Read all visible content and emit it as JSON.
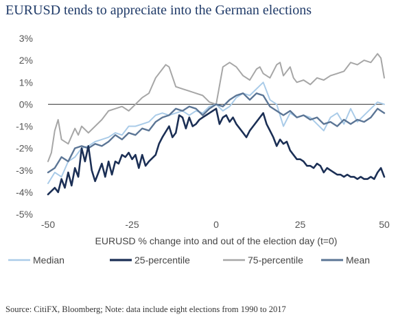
{
  "title": "EURUSD tends to appreciate into the German elections",
  "source": "Source: CitiFX, Bloomberg; Note: data include eight elections from 1990 to 2017",
  "chart_data": {
    "type": "line",
    "xlabel": "EURUSD % change into and out of the election day (t=0)",
    "ylabel": "",
    "xlim": [
      -50,
      50
    ],
    "ylim": [
      -5,
      3
    ],
    "xticks": [
      -50,
      -25,
      0,
      25,
      50
    ],
    "xtick_labels": [
      "-50",
      "-25",
      "0",
      "25",
      "50"
    ],
    "yticks": [
      3,
      2,
      1,
      0,
      -1,
      -2,
      -3,
      -4,
      -5
    ],
    "ytick_labels": [
      "3%",
      "2%",
      "1%",
      "0%",
      "-1%",
      "-2%",
      "-3%",
      "-4%",
      "-5%"
    ],
    "legend_position": "bottom",
    "grid": false,
    "zero_line": true,
    "series": [
      {
        "name": "Median",
        "color": "#a9cbe8",
        "width": 2,
        "points": [
          [
            -50,
            -3.6
          ],
          [
            -48,
            -3.1
          ],
          [
            -46,
            -3.3
          ],
          [
            -44,
            -2.6
          ],
          [
            -42,
            -2.4
          ],
          [
            -40,
            -2.0
          ],
          [
            -38,
            -1.9
          ],
          [
            -36,
            -1.7
          ],
          [
            -34,
            -1.6
          ],
          [
            -32,
            -1.5
          ],
          [
            -30,
            -1.3
          ],
          [
            -28,
            -1.4
          ],
          [
            -26,
            -1.0
          ],
          [
            -24,
            -1.0
          ],
          [
            -22,
            -0.9
          ],
          [
            -20,
            -0.8
          ],
          [
            -18,
            -0.5
          ],
          [
            -16,
            -0.4
          ],
          [
            -14,
            -0.5
          ],
          [
            -12,
            -0.4
          ],
          [
            -10,
            -0.3
          ],
          [
            -8,
            -0.5
          ],
          [
            -6,
            -0.3
          ],
          [
            -4,
            -0.4
          ],
          [
            -2,
            -0.1
          ],
          [
            0,
            0.0
          ],
          [
            2,
            -0.3
          ],
          [
            4,
            -0.1
          ],
          [
            6,
            0.3
          ],
          [
            8,
            0.5
          ],
          [
            10,
            0.4
          ],
          [
            12,
            0.7
          ],
          [
            14,
            1.0
          ],
          [
            16,
            0.2
          ],
          [
            18,
            0.0
          ],
          [
            20,
            -1.0
          ],
          [
            22,
            -0.4
          ],
          [
            24,
            -0.6
          ],
          [
            26,
            -0.5
          ],
          [
            28,
            -0.6
          ],
          [
            30,
            -0.9
          ],
          [
            32,
            -1.2
          ],
          [
            34,
            -0.6
          ],
          [
            36,
            -0.4
          ],
          [
            38,
            -0.9
          ],
          [
            40,
            -0.2
          ],
          [
            42,
            -0.8
          ],
          [
            44,
            -0.5
          ],
          [
            46,
            -0.2
          ],
          [
            48,
            0.1
          ],
          [
            50,
            0.0
          ]
        ]
      },
      {
        "name": "25-percentile",
        "color": "#1b2f55",
        "width": 2.6,
        "points": [
          [
            -50,
            -4.1
          ],
          [
            -48,
            -3.8
          ],
          [
            -47,
            -4.0
          ],
          [
            -46,
            -3.4
          ],
          [
            -45,
            -3.8
          ],
          [
            -44,
            -3.1
          ],
          [
            -43,
            -3.7
          ],
          [
            -42,
            -2.9
          ],
          [
            -41,
            -3.3
          ],
          [
            -40,
            -2.0
          ],
          [
            -39,
            -2.6
          ],
          [
            -38,
            -1.9
          ],
          [
            -37,
            -3.0
          ],
          [
            -36,
            -3.5
          ],
          [
            -35,
            -3.1
          ],
          [
            -34,
            -2.7
          ],
          [
            -33,
            -3.3
          ],
          [
            -32,
            -2.6
          ],
          [
            -31,
            -3.2
          ],
          [
            -30,
            -2.6
          ],
          [
            -29,
            -2.7
          ],
          [
            -28,
            -2.3
          ],
          [
            -27,
            -2.4
          ],
          [
            -26,
            -2.2
          ],
          [
            -25,
            -2.5
          ],
          [
            -24,
            -2.3
          ],
          [
            -23,
            -2.9
          ],
          [
            -22,
            -2.3
          ],
          [
            -21,
            -2.8
          ],
          [
            -20,
            -2.6
          ],
          [
            -18,
            -2.3
          ],
          [
            -17,
            -1.8
          ],
          [
            -16,
            -1.5
          ],
          [
            -14,
            -1.0
          ],
          [
            -13,
            -1.5
          ],
          [
            -12,
            -1.3
          ],
          [
            -11,
            -0.5
          ],
          [
            -10,
            -0.6
          ],
          [
            -9,
            -1.1
          ],
          [
            -8,
            -0.6
          ],
          [
            -7,
            -1.0
          ],
          [
            -6,
            -0.9
          ],
          [
            -5,
            -0.7
          ],
          [
            -4,
            -0.6
          ],
          [
            -3,
            -0.5
          ],
          [
            -2,
            -0.4
          ],
          [
            -1,
            -0.3
          ],
          [
            0,
            -0.2
          ],
          [
            1,
            -0.9
          ],
          [
            2,
            -0.6
          ],
          [
            3,
            -0.5
          ],
          [
            4,
            -0.8
          ],
          [
            5,
            -0.6
          ],
          [
            6,
            -0.9
          ],
          [
            7,
            -1.1
          ],
          [
            8,
            -1.3
          ],
          [
            9,
            -1.5
          ],
          [
            10,
            -1.2
          ],
          [
            11,
            -1.0
          ],
          [
            12,
            -0.8
          ],
          [
            13,
            -0.6
          ],
          [
            14,
            -0.4
          ],
          [
            15,
            -0.9
          ],
          [
            16,
            -1.2
          ],
          [
            17,
            -1.5
          ],
          [
            18,
            -1.9
          ],
          [
            19,
            -1.6
          ],
          [
            20,
            -1.8
          ],
          [
            21,
            -1.7
          ],
          [
            22,
            -2.1
          ],
          [
            23,
            -2.3
          ],
          [
            24,
            -2.5
          ],
          [
            25,
            -2.5
          ],
          [
            26,
            -2.6
          ],
          [
            27,
            -2.8
          ],
          [
            28,
            -2.8
          ],
          [
            29,
            -2.9
          ],
          [
            30,
            -2.7
          ],
          [
            31,
            -2.8
          ],
          [
            32,
            -3.1
          ],
          [
            33,
            -2.9
          ],
          [
            34,
            -3.0
          ],
          [
            35,
            -3.1
          ],
          [
            36,
            -3.2
          ],
          [
            37,
            -3.2
          ],
          [
            38,
            -3.3
          ],
          [
            39,
            -3.2
          ],
          [
            40,
            -3.3
          ],
          [
            41,
            -3.3
          ],
          [
            42,
            -3.4
          ],
          [
            43,
            -3.3
          ],
          [
            44,
            -3.4
          ],
          [
            45,
            -3.4
          ],
          [
            46,
            -3.3
          ],
          [
            47,
            -3.4
          ],
          [
            48,
            -3.1
          ],
          [
            49,
            -2.9
          ],
          [
            50,
            -3.3
          ]
        ]
      },
      {
        "name": "75-percentile",
        "color": "#a6a6a6",
        "width": 2,
        "points": [
          [
            -50,
            -2.6
          ],
          [
            -49,
            -2.2
          ],
          [
            -48,
            -1.2
          ],
          [
            -47,
            -0.7
          ],
          [
            -46,
            -1.6
          ],
          [
            -44,
            -1.8
          ],
          [
            -42,
            -1.1
          ],
          [
            -41,
            -1.4
          ],
          [
            -40,
            -1.0
          ],
          [
            -38,
            -1.3
          ],
          [
            -36,
            -1.0
          ],
          [
            -34,
            -0.7
          ],
          [
            -32,
            -0.3
          ],
          [
            -30,
            -0.2
          ],
          [
            -28,
            -0.1
          ],
          [
            -26,
            -0.3
          ],
          [
            -24,
            0.0
          ],
          [
            -22,
            0.3
          ],
          [
            -20,
            0.5
          ],
          [
            -18,
            1.2
          ],
          [
            -16,
            1.6
          ],
          [
            -15,
            1.8
          ],
          [
            -14,
            1.7
          ],
          [
            -12,
            0.8
          ],
          [
            -10,
            0.7
          ],
          [
            -8,
            0.6
          ],
          [
            -6,
            0.5
          ],
          [
            -4,
            0.4
          ],
          [
            -2,
            0.1
          ],
          [
            0,
            0.0
          ],
          [
            2,
            1.7
          ],
          [
            4,
            1.9
          ],
          [
            6,
            1.7
          ],
          [
            8,
            1.3
          ],
          [
            10,
            1.1
          ],
          [
            12,
            1.6
          ],
          [
            13,
            1.7
          ],
          [
            14,
            1.4
          ],
          [
            16,
            1.2
          ],
          [
            18,
            1.8
          ],
          [
            19,
            1.9
          ],
          [
            20,
            1.3
          ],
          [
            22,
            1.7
          ],
          [
            23,
            1.2
          ],
          [
            24,
            1.0
          ],
          [
            26,
            1.1
          ],
          [
            28,
            0.9
          ],
          [
            30,
            1.2
          ],
          [
            32,
            1.1
          ],
          [
            34,
            1.3
          ],
          [
            36,
            1.4
          ],
          [
            38,
            1.5
          ],
          [
            40,
            1.9
          ],
          [
            42,
            1.8
          ],
          [
            44,
            2.0
          ],
          [
            46,
            1.9
          ],
          [
            48,
            2.3
          ],
          [
            49,
            2.1
          ],
          [
            50,
            1.2
          ]
        ]
      },
      {
        "name": "Mean",
        "color": "#5b7595",
        "width": 2.4,
        "points": [
          [
            -50,
            -3.1
          ],
          [
            -48,
            -2.9
          ],
          [
            -46,
            -2.4
          ],
          [
            -44,
            -2.6
          ],
          [
            -42,
            -2.0
          ],
          [
            -40,
            -1.9
          ],
          [
            -38,
            -2.0
          ],
          [
            -36,
            -1.8
          ],
          [
            -34,
            -1.9
          ],
          [
            -32,
            -1.7
          ],
          [
            -30,
            -1.4
          ],
          [
            -28,
            -1.6
          ],
          [
            -26,
            -1.3
          ],
          [
            -24,
            -1.4
          ],
          [
            -22,
            -1.1
          ],
          [
            -20,
            -1.2
          ],
          [
            -18,
            -0.8
          ],
          [
            -16,
            -0.6
          ],
          [
            -14,
            -0.5
          ],
          [
            -12,
            -0.2
          ],
          [
            -10,
            -0.3
          ],
          [
            -8,
            -0.1
          ],
          [
            -6,
            -0.2
          ],
          [
            -4,
            -0.5
          ],
          [
            -2,
            -0.2
          ],
          [
            0,
            0.0
          ],
          [
            2,
            -0.1
          ],
          [
            4,
            0.2
          ],
          [
            6,
            0.4
          ],
          [
            8,
            0.5
          ],
          [
            10,
            0.2
          ],
          [
            12,
            0.5
          ],
          [
            14,
            0.4
          ],
          [
            16,
            -0.1
          ],
          [
            18,
            -0.3
          ],
          [
            20,
            -0.5
          ],
          [
            22,
            -0.3
          ],
          [
            24,
            -0.6
          ],
          [
            26,
            -0.5
          ],
          [
            28,
            -0.7
          ],
          [
            30,
            -0.6
          ],
          [
            32,
            -0.9
          ],
          [
            34,
            -0.8
          ],
          [
            36,
            -1.0
          ],
          [
            38,
            -0.7
          ],
          [
            40,
            -0.9
          ],
          [
            42,
            -0.7
          ],
          [
            44,
            -0.8
          ],
          [
            46,
            -0.6
          ],
          [
            48,
            -0.2
          ],
          [
            50,
            -0.4
          ]
        ]
      }
    ]
  }
}
